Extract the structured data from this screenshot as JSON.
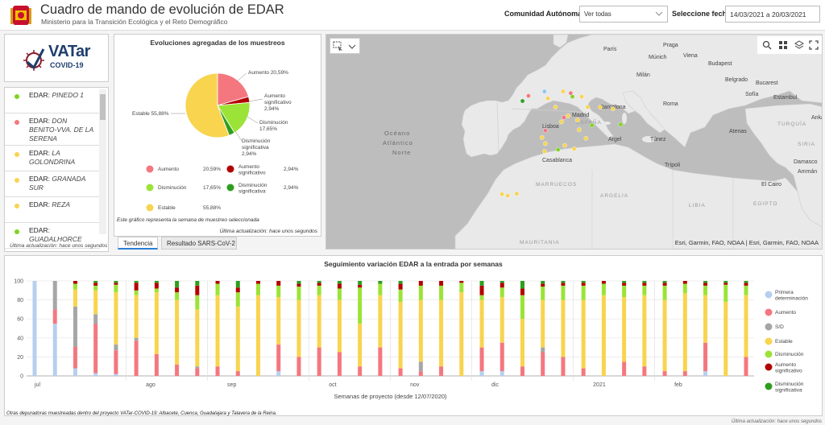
{
  "header": {
    "title": "Cuadro de mando de evolución de EDAR",
    "subtitle": "Ministerio para la Transición Ecológica y el Reto Demográfico",
    "ccaa_label": "Comunidad Autónoma",
    "ccaa_value": "Ver todas",
    "fecha_label": "Seleccione fecha",
    "fecha_value": "14/03/2021 a 20/03/2021"
  },
  "vatar": {
    "line1": "VATar",
    "line2": "COVID-19"
  },
  "edar_list": {
    "items": [
      {
        "prefix": "EDAR:",
        "name": "PINEDO 1",
        "color": "#7ed321"
      },
      {
        "prefix": "EDAR:",
        "name": "DON BENITO-VVA. DE LA SERENA",
        "color": "#f4777f"
      },
      {
        "prefix": "EDAR:",
        "name": "LA GOLONDRINA",
        "color": "#f8d44f"
      },
      {
        "prefix": "EDAR:",
        "name": "GRANADA SUR",
        "color": "#f8d44f"
      },
      {
        "prefix": "EDAR:",
        "name": "REZA",
        "color": "#f8d44f"
      },
      {
        "prefix": "EDAR:",
        "name": "GUADALHORCE",
        "color": "#7ed321"
      }
    ],
    "updated": "Última actualización: hace unos segundos"
  },
  "pie": {
    "title": "Evoluciones agregadas de los muestreos",
    "note": "Este gráfico representa la semana de muestreo seleccionada",
    "updated": "Última actualización: hace unos segundos",
    "callouts": {
      "aumento": "Aumento 20,59%",
      "aum_sig_1": "Aumento",
      "aum_sig_2": "significativo",
      "aum_sig_3": "2,94%",
      "dis_1": "Disminución",
      "dis_2": "17,65%",
      "dis_sig_1": "Disminución",
      "dis_sig_2": "significativa",
      "dis_sig_3": "2,94%",
      "estable": "Estable 55,88%"
    },
    "legend": [
      {
        "name": "Aumento",
        "value": "20,59%",
        "color": "#f4777f"
      },
      {
        "name": "Aumento significativo",
        "value": "2,94%",
        "color": "#b30000"
      },
      {
        "name": "Disminución",
        "value": "17,65%",
        "color": "#9be336"
      },
      {
        "name": "Disminución significativa",
        "value": "2,94%",
        "color": "#2e9e1f"
      },
      {
        "name": "Estable",
        "value": "55,88%",
        "color": "#f8d44f"
      }
    ]
  },
  "tabs": {
    "tendencia": "Tendencia",
    "resultado": "Resultado SARS-CoV-2"
  },
  "map": {
    "attribution": "Esri, Garmin, FAO, NOAA | Esri, Garmin, FAO, NOAA",
    "labels": {
      "paris": "París",
      "praga": "Praga",
      "viena": "Viena",
      "munich": "Múnich",
      "budapest": "Budapest",
      "milan": "Milán",
      "belgrado": "Belgrado",
      "bucarest": "Bucarest",
      "sofia": "Sofía",
      "roma": "Roma",
      "estambul": "Estambul",
      "ankara": "Ankara",
      "turquia": "TURQUÍA",
      "atenas": "Atenas",
      "barcelona": "Barcelona",
      "madrid": "Madrid",
      "espana": "ESPAÑA",
      "lisboa": "Lisboa",
      "argel": "Argel",
      "tunez": "Túnez",
      "oceano1": "Océano",
      "oceano2": "Atlántico",
      "oceano3": "Norte",
      "casablanca": "Casablanca",
      "marruecos": "MARRUECOS",
      "argelia": "ARGELIA",
      "tripoli": "Trípoli",
      "libia": "LIBIA",
      "egipto": "EGIPTO",
      "elcairo": "El Cairo",
      "damasco": "Damasco",
      "amman": "Ammán",
      "siria": "SIRIA",
      "mauritania": "MAURITANIA"
    },
    "points": [
      {
        "lon": -8.6,
        "lat": 42.3,
        "color": "#2e9e1f"
      },
      {
        "lon": -7.9,
        "lat": 42.9,
        "color": "#f4777f"
      },
      {
        "lon": -6.0,
        "lat": 43.4,
        "color": "#8ec5f0"
      },
      {
        "lon": -3.8,
        "lat": 43.4,
        "color": "#f8d44f"
      },
      {
        "lon": -2.9,
        "lat": 43.2,
        "color": "#f4777f"
      },
      {
        "lon": -2.7,
        "lat": 42.8,
        "color": "#7ed321"
      },
      {
        "lon": -1.6,
        "lat": 42.8,
        "color": "#f8d44f"
      },
      {
        "lon": -5.6,
        "lat": 42.6,
        "color": "#f8d44f"
      },
      {
        "lon": -4.7,
        "lat": 41.6,
        "color": "#f8d44f"
      },
      {
        "lon": -3.7,
        "lat": 40.4,
        "color": "#f4777f"
      },
      {
        "lon": -3.2,
        "lat": 40.6,
        "color": "#f8d44f"
      },
      {
        "lon": -4.0,
        "lat": 39.9,
        "color": "#f8d44f"
      },
      {
        "lon": -2.1,
        "lat": 40.1,
        "color": "#f8d44f"
      },
      {
        "lon": -1.9,
        "lat": 39.0,
        "color": "#f8d44f"
      },
      {
        "lon": -0.9,
        "lat": 41.6,
        "color": "#f8d44f"
      },
      {
        "lon": 0.6,
        "lat": 41.6,
        "color": "#f8d44f"
      },
      {
        "lon": 2.1,
        "lat": 41.4,
        "color": "#f8d44f"
      },
      {
        "lon": -0.4,
        "lat": 39.5,
        "color": "#7ed321"
      },
      {
        "lon": -5.9,
        "lat": 38.9,
        "color": "#f4777f"
      },
      {
        "lon": -6.3,
        "lat": 38.1,
        "color": "#f8d44f"
      },
      {
        "lon": -5.9,
        "lat": 37.4,
        "color": "#f8d44f"
      },
      {
        "lon": -3.6,
        "lat": 37.2,
        "color": "#f8d44f"
      },
      {
        "lon": -4.4,
        "lat": 36.7,
        "color": "#7ed321"
      },
      {
        "lon": -1.1,
        "lat": 38.0,
        "color": "#f8d44f"
      },
      {
        "lon": -2.5,
        "lat": 36.8,
        "color": "#f8d44f"
      },
      {
        "lon": -6.0,
        "lat": 36.5,
        "color": "#f8d44f"
      },
      {
        "lon": 3.0,
        "lat": 39.6,
        "color": "#7ed321"
      },
      {
        "lon": -15.4,
        "lat": 28.1,
        "color": "#f8d44f"
      },
      {
        "lon": -16.3,
        "lat": 28.4,
        "color": "#f8d44f"
      },
      {
        "lon": -14.0,
        "lat": 28.5,
        "color": "#f8d44f"
      }
    ]
  },
  "chart_data": {
    "type": "bar",
    "title": "Seguimiento variación EDAR a la entrada por semanas",
    "xlabel": "Semanas de proyecto (desde 12/07/2020)",
    "ylim": [
      0,
      100
    ],
    "yticks": [
      "0",
      "20",
      "40",
      "60",
      "80",
      "100"
    ],
    "month_labels": [
      {
        "label": "jul",
        "week": 1
      },
      {
        "label": "ago",
        "week": 6
      },
      {
        "label": "sep",
        "week": 10
      },
      {
        "label": "oct",
        "week": 15
      },
      {
        "label": "nov",
        "week": 19
      },
      {
        "label": "dic",
        "week": 23
      },
      {
        "label": "2021",
        "week": 28
      },
      {
        "label": "feb",
        "week": 32
      }
    ],
    "legend": [
      {
        "name": "Primera determinación",
        "color": "#b7cfee"
      },
      {
        "name": "Aumento",
        "color": "#f4777f"
      },
      {
        "name": "S/D",
        "color": "#a6a6a6"
      },
      {
        "name": "Estable",
        "color": "#f8d44f"
      },
      {
        "name": "Disminución",
        "color": "#9be336"
      },
      {
        "name": "Aumento significativo",
        "color": "#b30000"
      },
      {
        "name": "Disminución significativa",
        "color": "#2e9e1f"
      }
    ],
    "series_order": [
      "Primera determinación",
      "Aumento",
      "S/D",
      "Estable",
      "Disminución",
      "Aumento significativo",
      "Disminución significativa"
    ],
    "weeks": [
      1,
      2,
      3,
      4,
      5,
      6,
      7,
      8,
      9,
      10,
      11,
      12,
      13,
      14,
      15,
      16,
      17,
      18,
      19,
      20,
      21,
      22,
      23,
      24,
      25,
      26,
      27,
      28,
      29,
      30,
      31,
      32,
      33,
      34,
      35,
      36
    ],
    "stacks": [
      [
        100,
        0,
        0,
        0,
        0,
        0,
        0
      ],
      [
        55,
        15,
        30,
        0,
        0,
        0,
        0
      ],
      [
        8,
        23,
        42,
        18,
        6,
        3,
        0
      ],
      [
        3,
        52,
        10,
        25,
        5,
        3,
        2
      ],
      [
        2,
        25,
        6,
        55,
        8,
        2,
        2
      ],
      [
        0,
        37,
        3,
        45,
        5,
        8,
        2
      ],
      [
        0,
        23,
        0,
        65,
        4,
        6,
        2
      ],
      [
        0,
        12,
        0,
        68,
        8,
        5,
        7
      ],
      [
        0,
        8,
        2,
        60,
        15,
        10,
        5
      ],
      [
        0,
        10,
        0,
        75,
        12,
        3,
        0
      ],
      [
        0,
        5,
        0,
        68,
        15,
        5,
        7
      ],
      [
        0,
        0,
        0,
        85,
        12,
        3,
        0
      ],
      [
        5,
        28,
        0,
        50,
        12,
        5,
        0
      ],
      [
        0,
        20,
        0,
        60,
        14,
        3,
        3
      ],
      [
        0,
        30,
        0,
        55,
        10,
        3,
        2
      ],
      [
        0,
        25,
        0,
        55,
        12,
        5,
        3
      ],
      [
        0,
        10,
        0,
        45,
        38,
        3,
        4
      ],
      [
        0,
        30,
        0,
        55,
        12,
        0,
        3
      ],
      [
        0,
        8,
        0,
        70,
        13,
        6,
        3
      ],
      [
        0,
        5,
        10,
        65,
        15,
        5,
        0
      ],
      [
        0,
        10,
        0,
        70,
        15,
        5,
        0
      ],
      [
        0,
        0,
        0,
        88,
        10,
        2,
        0
      ],
      [
        5,
        25,
        0,
        50,
        5,
        10,
        5
      ],
      [
        5,
        30,
        0,
        48,
        10,
        5,
        2
      ],
      [
        0,
        10,
        0,
        50,
        25,
        7,
        8
      ],
      [
        0,
        25,
        5,
        50,
        14,
        3,
        3
      ],
      [
        0,
        20,
        0,
        60,
        15,
        3,
        2
      ],
      [
        0,
        8,
        0,
        72,
        15,
        3,
        2
      ],
      [
        0,
        0,
        0,
        85,
        12,
        3,
        0
      ],
      [
        0,
        15,
        0,
        68,
        12,
        3,
        2
      ],
      [
        0,
        10,
        0,
        75,
        10,
        3,
        2
      ],
      [
        0,
        5,
        0,
        75,
        15,
        3,
        2
      ],
      [
        0,
        5,
        0,
        82,
        10,
        3,
        0
      ],
      [
        5,
        30,
        0,
        50,
        10,
        3,
        2
      ],
      [
        0,
        0,
        0,
        78,
        18,
        2,
        2
      ],
      [
        0,
        20,
        0,
        65,
        10,
        3,
        2
      ]
    ]
  },
  "footer": {
    "note": "Otras depuradoras muestreadas dentro del proyecto VATar-COVID-19: Albacete, Cuenca, Guadalajara y Talavera de la Reina.",
    "updated": "Última actualización: hace unos segundos"
  }
}
